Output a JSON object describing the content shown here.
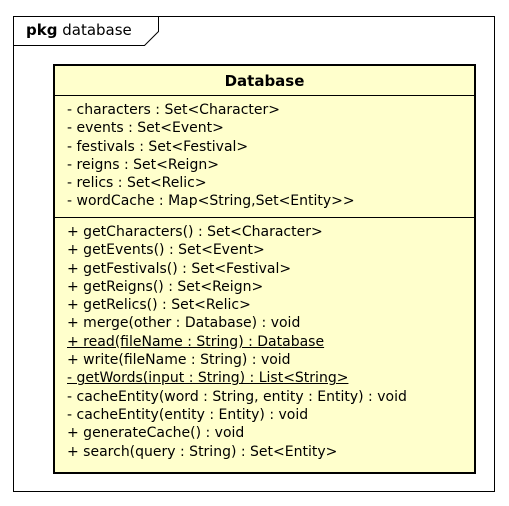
{
  "package": {
    "keyword": "pkg",
    "name": "database"
  },
  "class": {
    "name": "Database",
    "attributes": [
      "- characters : Set<Character>",
      "- events : Set<Event>",
      "- festivals : Set<Festival>",
      "- reigns : Set<Reign>",
      "- relics : Set<Relic>",
      "- wordCache : Map<String,Set<Entity>>"
    ],
    "operations": [
      "+ getCharacters() : Set<Character>",
      "+ getEvents() : Set<Event>",
      "+ getFestivals() : Set<Festival>",
      "+ getReigns() : Set<Reign>",
      "+ getRelics() : Set<Relic>",
      "+ merge(other : Database) : void",
      "+ read(fileName : String) : Database",
      "+ write(fileName : String) : void",
      "- getWords(input : String) : List<String>",
      "- cacheEntity(word : String, entity : Entity) : void",
      "- cacheEntity(entity : Entity) : void",
      "+ generateCache() : void",
      "+ search(query : String) : Set<Entity>"
    ],
    "static_operations": [
      "+ read(fileName : String) : Database",
      "- getWords(input : String) : List<String>"
    ],
    "fill_color": "#FFFFCC"
  }
}
